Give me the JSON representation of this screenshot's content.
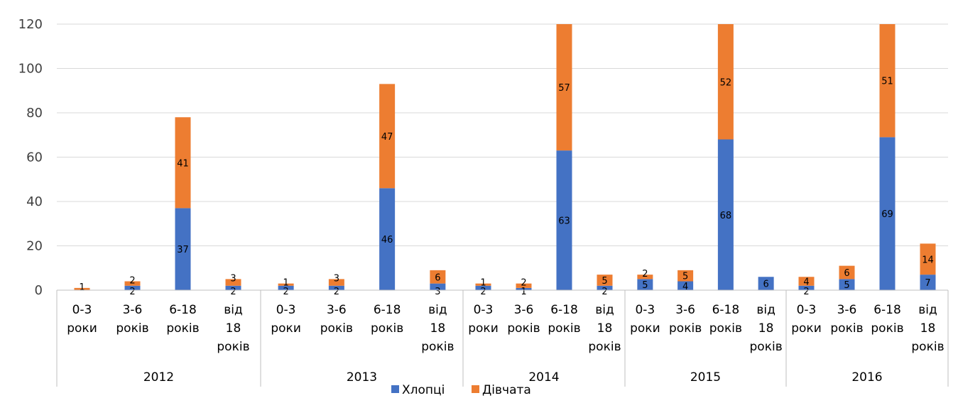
{
  "chart_data": {
    "type": "bar",
    "stacked": true,
    "title": "",
    "xlabel": "",
    "ylabel": "",
    "ylim": [
      0,
      120
    ],
    "yticks": [
      "0",
      "20",
      "40",
      "60",
      "80",
      "100",
      "120"
    ],
    "grid": true,
    "legend_position": "bottom",
    "groups": [
      {
        "label": "2012",
        "categories": [
          {
            "lines": [
              "0-3",
              "роки"
            ],
            "values": [
              0,
              1
            ],
            "labels": [
              null,
              "1"
            ]
          },
          {
            "lines": [
              "3-6",
              "років"
            ],
            "values": [
              2,
              2
            ],
            "labels": [
              "2",
              "2"
            ]
          },
          {
            "lines": [
              "6-18",
              "років"
            ],
            "values": [
              37,
              41
            ],
            "labels": [
              "37",
              "41"
            ]
          },
          {
            "lines": [
              "від",
              "18",
              "років"
            ],
            "values": [
              2,
              3
            ],
            "labels": [
              "2",
              "3"
            ]
          }
        ]
      },
      {
        "label": "2013",
        "categories": [
          {
            "lines": [
              "0-3",
              "роки"
            ],
            "values": [
              2,
              1
            ],
            "labels": [
              "2",
              "1"
            ]
          },
          {
            "lines": [
              "3-6",
              "років"
            ],
            "values": [
              2,
              3
            ],
            "labels": [
              "2",
              "3"
            ]
          },
          {
            "lines": [
              "6-18",
              "років"
            ],
            "values": [
              46,
              47
            ],
            "labels": [
              "46",
              "47"
            ]
          },
          {
            "lines": [
              "від",
              "18",
              "років"
            ],
            "values": [
              3,
              6
            ],
            "labels": [
              "3",
              "6"
            ]
          }
        ]
      },
      {
        "label": "2014",
        "categories": [
          {
            "lines": [
              "0-3",
              "роки"
            ],
            "values": [
              2,
              1
            ],
            "labels": [
              "2",
              "1"
            ]
          },
          {
            "lines": [
              "3-6",
              "років"
            ],
            "values": [
              1,
              2
            ],
            "labels": [
              "1",
              "2"
            ]
          },
          {
            "lines": [
              "6-18",
              "років"
            ],
            "values": [
              63,
              57
            ],
            "labels": [
              "63",
              "57"
            ]
          },
          {
            "lines": [
              "від",
              "18",
              "років"
            ],
            "values": [
              2,
              5
            ],
            "labels": [
              "2",
              "5"
            ]
          }
        ]
      },
      {
        "label": "2015",
        "categories": [
          {
            "lines": [
              "0-3",
              "роки"
            ],
            "values": [
              5,
              2
            ],
            "labels": [
              "5",
              "2"
            ]
          },
          {
            "lines": [
              "3-6",
              "років"
            ],
            "values": [
              4,
              5
            ],
            "labels": [
              "4",
              "5"
            ]
          },
          {
            "lines": [
              "6-18",
              "років"
            ],
            "values": [
              68,
              52
            ],
            "labels": [
              "68",
              "52"
            ]
          },
          {
            "lines": [
              "від",
              "18",
              "років"
            ],
            "values": [
              6,
              0
            ],
            "labels": [
              "6",
              null
            ]
          }
        ]
      },
      {
        "label": "2016",
        "categories": [
          {
            "lines": [
              "0-3",
              "роки"
            ],
            "values": [
              2,
              4
            ],
            "labels": [
              "2",
              "4"
            ]
          },
          {
            "lines": [
              "3-6",
              "років"
            ],
            "values": [
              5,
              6
            ],
            "labels": [
              "5",
              "6"
            ]
          },
          {
            "lines": [
              "6-18",
              "років"
            ],
            "values": [
              69,
              51
            ],
            "labels": [
              "69",
              "51"
            ]
          },
          {
            "lines": [
              "від",
              "18",
              "років"
            ],
            "values": [
              7,
              14
            ],
            "labels": [
              "7",
              "14"
            ]
          }
        ]
      }
    ],
    "series": [
      {
        "name": "Хлопці",
        "color": "#4472c4"
      },
      {
        "name": "Дівчата",
        "color": "#ed7d31"
      }
    ]
  }
}
